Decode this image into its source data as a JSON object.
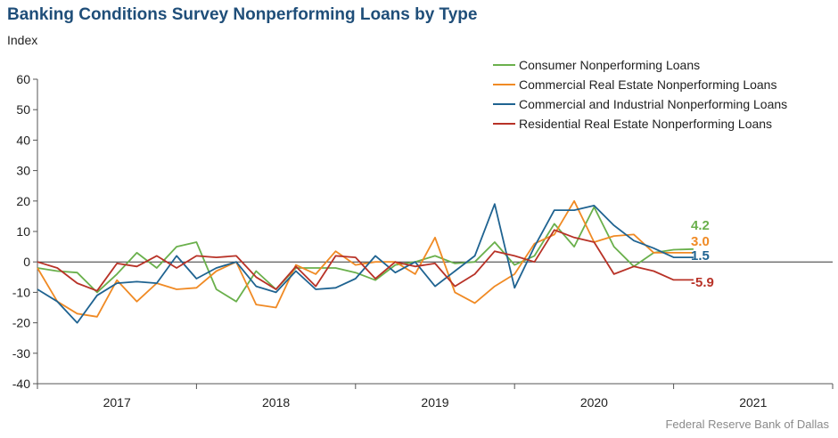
{
  "title": "Banking Conditions Survey Nonperforming Loans by Type",
  "unit_label": "Index",
  "source": "Federal Reserve Bank of Dallas",
  "chart_data": {
    "type": "line",
    "title": "Banking Conditions Survey Nonperforming Loans by Type",
    "ylabel": "Index",
    "xlabel": "",
    "ylim": [
      -40,
      60
    ],
    "yticks": [
      -40,
      -30,
      -20,
      -10,
      0,
      10,
      20,
      30,
      40,
      50,
      60
    ],
    "xlim": [
      2016.5,
      2021.5
    ],
    "year_ticks": [
      "2017",
      "2018",
      "2019",
      "2020",
      "2021"
    ],
    "x": [
      2016.5,
      2016.625,
      2016.75,
      2016.875,
      2017.0,
      2017.125,
      2017.25,
      2017.375,
      2017.5,
      2017.625,
      2017.75,
      2017.875,
      2018.0,
      2018.125,
      2018.25,
      2018.375,
      2018.5,
      2018.625,
      2018.75,
      2018.875,
      2019.0,
      2019.125,
      2019.25,
      2019.375,
      2019.5,
      2019.625,
      2019.75,
      2019.875,
      2020.0,
      2020.125,
      2020.25,
      2020.375,
      2020.5,
      2020.625
    ],
    "legend_position": "top-right",
    "grid": false,
    "series": [
      {
        "name": "Consumer Nonperforming Loans",
        "color": "#6ab04c",
        "values": [
          -2.0,
          -3.0,
          -3.5,
          -10.0,
          -4.0,
          3.0,
          -2.0,
          5.0,
          6.5,
          -9.0,
          -13.0,
          -3.0,
          -9.0,
          -2.0,
          -2.0,
          -2.0,
          -3.5,
          -6.0,
          -1.0,
          0.0,
          2.0,
          -0.5,
          0.0,
          6.5,
          -1.0,
          2.0,
          12.5,
          5.0,
          18.0,
          5.0,
          -1.5,
          3.0,
          4.0,
          4.2
        ],
        "end_label": "4.2"
      },
      {
        "name": "Commercial Real Estate Nonperforming Loans",
        "color": "#f08a24",
        "values": [
          -2.0,
          -13.0,
          -17.0,
          -18.0,
          -6.0,
          -13.0,
          -7.0,
          -9.0,
          -8.5,
          -3.0,
          0.0,
          -14.0,
          -15.0,
          -1.0,
          -4.0,
          3.5,
          -1.0,
          0.0,
          0.0,
          -4.0,
          8.0,
          -10.0,
          -13.5,
          -8.0,
          -4.0,
          6.0,
          9.0,
          20.0,
          6.5,
          8.5,
          9.0,
          3.0,
          3.0,
          3.0
        ],
        "end_label": "3.0"
      },
      {
        "name": "Commercial and Industrial Nonperforming Loans",
        "color": "#1f6391",
        "values": [
          -9.0,
          -13.0,
          -20.0,
          -11.0,
          -7.0,
          -6.5,
          -7.0,
          2.0,
          -5.5,
          -2.0,
          0.0,
          -8.0,
          -10.0,
          -3.0,
          -9.0,
          -8.5,
          -5.5,
          2.0,
          -3.5,
          0.0,
          -8.0,
          -3.0,
          2.0,
          19.0,
          -8.5,
          5.0,
          17.0,
          17.0,
          18.5,
          12.0,
          7.0,
          4.5,
          1.5,
          1.5
        ],
        "end_label": "1.5"
      },
      {
        "name": "Residential Real Estate Nonperforming Loans",
        "color": "#b83227",
        "values": [
          0.0,
          -2.0,
          -7.0,
          -9.5,
          -0.5,
          -1.5,
          2.0,
          -2.0,
          2.0,
          1.5,
          2.0,
          -5.0,
          -9.0,
          -1.5,
          -8.0,
          2.0,
          1.5,
          -5.5,
          0.0,
          -1.5,
          -0.5,
          -8.0,
          -4.0,
          3.5,
          2.0,
          0.0,
          10.5,
          8.0,
          6.5,
          -4.0,
          -1.5,
          -3.0,
          -5.9,
          -5.9
        ],
        "end_label": "-5.9"
      }
    ]
  }
}
